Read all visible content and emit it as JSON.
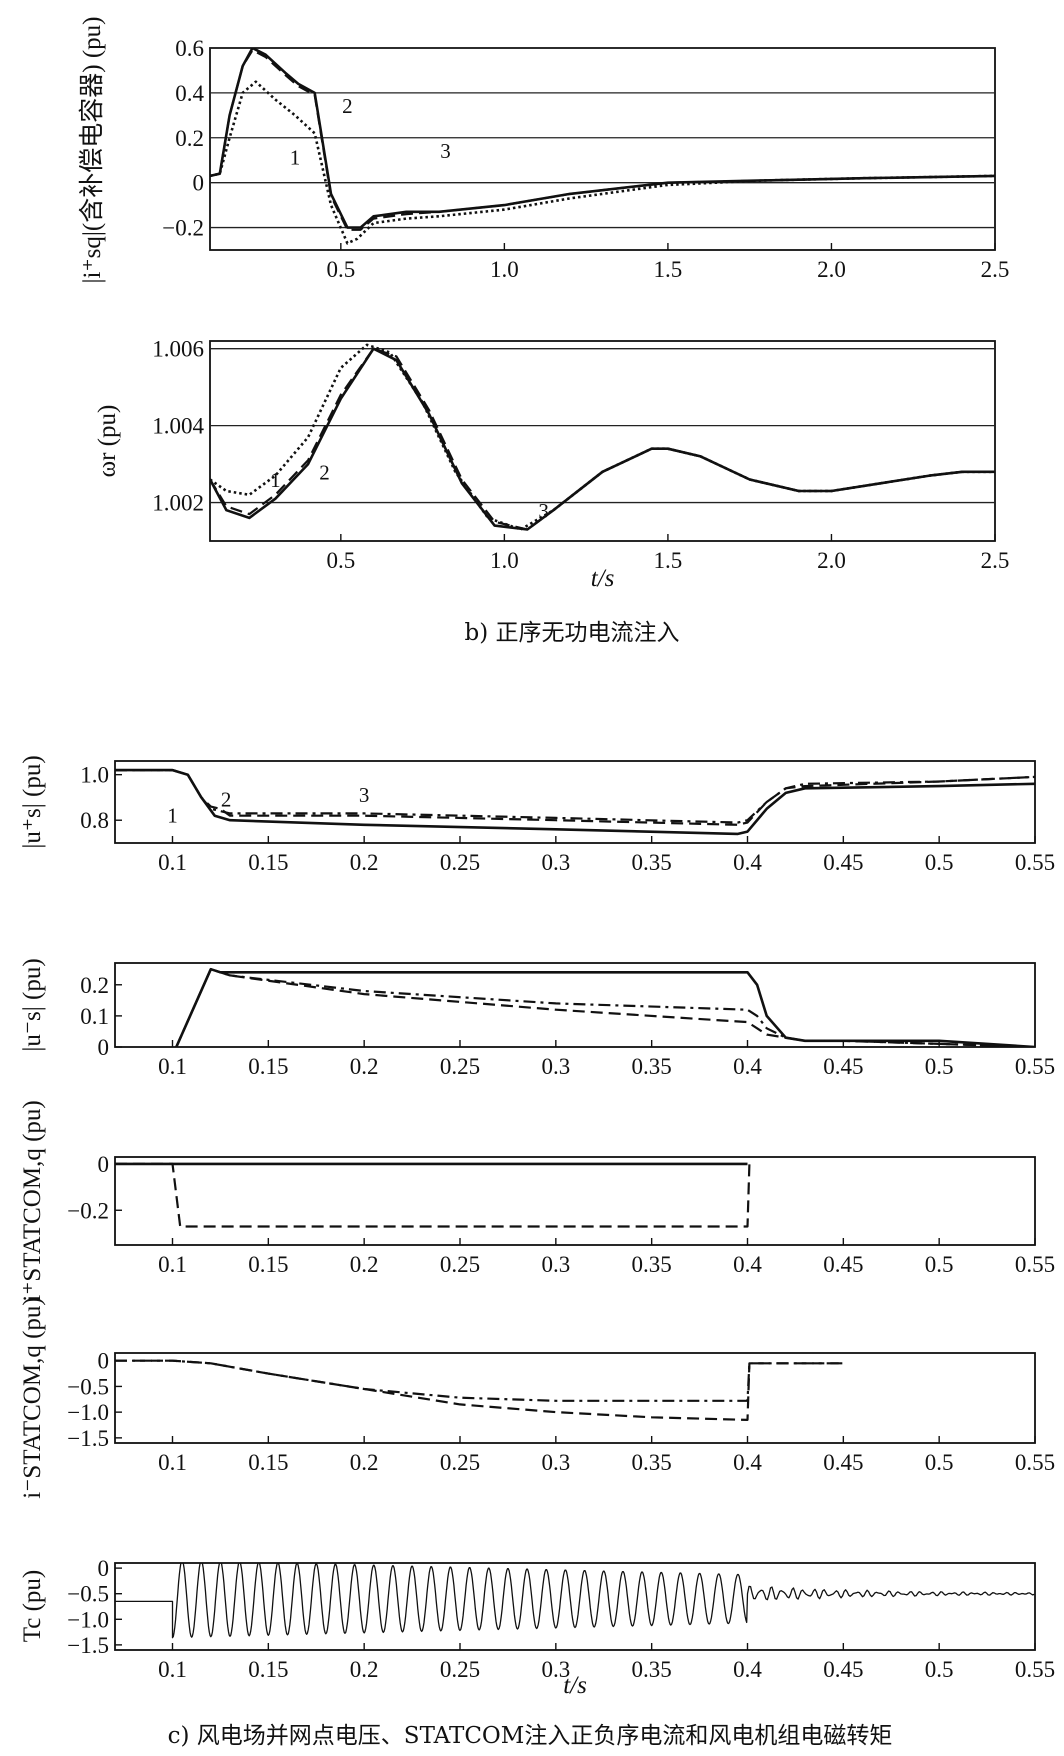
{
  "captions": {
    "b": "b) 正序无功电流注入",
    "c": "c) 风电场并网点电压、STATCOM注入正负序电流和风电机组电磁转矩"
  },
  "chart_data": [
    {
      "type": "line",
      "ylabel": "|i⁺sq|(含补偿电容器) (pu)",
      "xlim": [
        0.1,
        2.5
      ],
      "ylim": [
        -0.3,
        0.6
      ],
      "xticks": [
        0.5,
        1.0,
        1.5,
        2.0,
        2.5
      ],
      "xtick_labels": [
        "0.5",
        "1.0",
        "1.5",
        "2.0",
        "2.5"
      ],
      "yticks": [
        -0.2,
        0,
        0.2,
        0.4,
        0.6
      ],
      "ytick_labels": [
        "−0.2",
        "0",
        "0.2",
        "0.4",
        "0.6"
      ],
      "grid": "horizontal",
      "annotations": [
        {
          "text": "1",
          "x": 0.36,
          "y": 0.08
        },
        {
          "text": "2",
          "x": 0.52,
          "y": 0.31
        },
        {
          "text": "3",
          "x": 0.82,
          "y": 0.11
        }
      ],
      "series": [
        {
          "name": "1",
          "style": "dotted",
          "x": [
            0.1,
            0.13,
            0.16,
            0.2,
            0.24,
            0.3,
            0.36,
            0.42,
            0.47,
            0.52,
            0.55,
            0.6,
            0.7,
            0.8,
            1.0,
            1.2,
            1.5,
            1.8,
            2.1,
            2.5
          ],
          "y": [
            0.03,
            0.04,
            0.2,
            0.4,
            0.45,
            0.37,
            0.3,
            0.22,
            -0.1,
            -0.27,
            -0.25,
            -0.18,
            -0.16,
            -0.15,
            -0.12,
            -0.07,
            -0.01,
            0.01,
            0.02,
            0.03
          ]
        },
        {
          "name": "2",
          "style": "solid",
          "x": [
            0.1,
            0.13,
            0.16,
            0.2,
            0.23,
            0.27,
            0.33,
            0.37,
            0.42,
            0.47,
            0.52,
            0.56,
            0.6,
            0.7,
            0.8,
            1.0,
            1.2,
            1.5,
            1.8,
            2.1,
            2.5
          ],
          "y": [
            0.03,
            0.04,
            0.3,
            0.52,
            0.6,
            0.57,
            0.49,
            0.44,
            0.4,
            -0.05,
            -0.2,
            -0.2,
            -0.15,
            -0.13,
            -0.13,
            -0.1,
            -0.05,
            0.0,
            0.01,
            0.02,
            0.03
          ]
        },
        {
          "name": "3",
          "style": "dashed",
          "x": [
            0.1,
            0.13,
            0.16,
            0.2,
            0.23,
            0.27,
            0.33,
            0.37,
            0.42,
            0.47,
            0.52,
            0.56,
            0.6,
            0.7,
            0.8,
            1.0,
            1.2,
            1.5,
            1.8,
            2.1,
            2.5
          ],
          "y": [
            0.03,
            0.04,
            0.3,
            0.52,
            0.59,
            0.56,
            0.48,
            0.43,
            0.39,
            -0.06,
            -0.21,
            -0.21,
            -0.16,
            -0.14,
            -0.13,
            -0.1,
            -0.05,
            0.0,
            0.01,
            0.02,
            0.03
          ]
        }
      ]
    },
    {
      "type": "line",
      "ylabel": "ωr (pu)",
      "xlabel": "t/s",
      "xlim": [
        0.1,
        2.5
      ],
      "ylim": [
        1.001,
        1.0062
      ],
      "xticks": [
        0.5,
        1.0,
        1.5,
        2.0,
        2.5
      ],
      "xtick_labels": [
        "0.5",
        "1.0",
        "1.5",
        "2.0",
        "2.5"
      ],
      "yticks": [
        1.002,
        1.004,
        1.006
      ],
      "ytick_labels": [
        "1.002",
        "1.004",
        "1.006"
      ],
      "grid": "horizontal",
      "annotations": [
        {
          "text": "1",
          "x": 0.3,
          "y": 1.0024
        },
        {
          "text": "2",
          "x": 0.45,
          "y": 1.0026
        },
        {
          "text": "3",
          "x": 1.12,
          "y": 1.0016
        }
      ],
      "series": [
        {
          "name": "1",
          "style": "dotted",
          "x": [
            0.1,
            0.15,
            0.22,
            0.3,
            0.4,
            0.5,
            0.58,
            0.65,
            0.75,
            0.85,
            0.95,
            1.05,
            1.15,
            1.3,
            1.45,
            1.5,
            1.6,
            1.75,
            1.9,
            2.0,
            2.15,
            2.3,
            2.4,
            2.5
          ],
          "y": [
            1.0026,
            1.0023,
            1.0022,
            1.0027,
            1.0037,
            1.0055,
            1.0061,
            1.0059,
            1.0046,
            1.0028,
            1.0016,
            1.0013,
            1.0018,
            1.0028,
            1.0034,
            1.0034,
            1.0032,
            1.0026,
            1.0023,
            1.0023,
            1.0025,
            1.0027,
            1.0028,
            1.0028
          ]
        },
        {
          "name": "2",
          "style": "dashed",
          "x": [
            0.1,
            0.15,
            0.22,
            0.3,
            0.4,
            0.5,
            0.6,
            0.67,
            0.77,
            0.87,
            0.97,
            1.07,
            1.15,
            1.3,
            1.45,
            1.5,
            1.6,
            1.75,
            1.9,
            2.0,
            2.15,
            2.3,
            2.4,
            2.5
          ],
          "y": [
            1.0026,
            1.0019,
            1.0017,
            1.0022,
            1.0031,
            1.0048,
            1.006,
            1.0058,
            1.0044,
            1.0026,
            1.0015,
            1.0013,
            1.0018,
            1.0028,
            1.0034,
            1.0034,
            1.0032,
            1.0026,
            1.0023,
            1.0023,
            1.0025,
            1.0027,
            1.0028,
            1.0028
          ]
        },
        {
          "name": "3",
          "style": "solid",
          "x": [
            0.1,
            0.15,
            0.22,
            0.3,
            0.4,
            0.5,
            0.6,
            0.67,
            0.77,
            0.87,
            0.97,
            1.07,
            1.15,
            1.3,
            1.45,
            1.5,
            1.6,
            1.75,
            1.9,
            2.0,
            2.15,
            2.3,
            2.4,
            2.5
          ],
          "y": [
            1.0026,
            1.0018,
            1.0016,
            1.0021,
            1.003,
            1.0047,
            1.006,
            1.0057,
            1.0043,
            1.0025,
            1.0014,
            1.0013,
            1.0018,
            1.0028,
            1.0034,
            1.0034,
            1.0032,
            1.0026,
            1.0023,
            1.0023,
            1.0025,
            1.0027,
            1.0028,
            1.0028
          ]
        }
      ]
    },
    {
      "type": "line",
      "ylabel": "|u⁺s| (pu)",
      "xlim": [
        0.07,
        0.55
      ],
      "ylim": [
        0.7,
        1.06
      ],
      "xticks": [
        0.1,
        0.15,
        0.2,
        0.25,
        0.3,
        0.35,
        0.4,
        0.45,
        0.5,
        0.55
      ],
      "xtick_labels": [
        "0.1",
        "0.15",
        "0.2",
        "0.25",
        "0.3",
        "0.35",
        "0.4",
        "0.45",
        "0.5",
        "0.55"
      ],
      "yticks": [
        0.8,
        1.0
      ],
      "ytick_labels": [
        "0.8",
        "1.0"
      ],
      "grid": "none",
      "annotations": [
        {
          "text": "1",
          "x": 0.1,
          "y": 0.79
        },
        {
          "text": "2",
          "x": 0.128,
          "y": 0.86
        },
        {
          "text": "3",
          "x": 0.2,
          "y": 0.88
        }
      ],
      "series": [
        {
          "name": "1",
          "style": "solid",
          "x": [
            0.07,
            0.1,
            0.108,
            0.115,
            0.122,
            0.13,
            0.2,
            0.3,
            0.395,
            0.4,
            0.41,
            0.42,
            0.43,
            0.5,
            0.55
          ],
          "y": [
            1.02,
            1.02,
            1.0,
            0.9,
            0.82,
            0.8,
            0.78,
            0.76,
            0.74,
            0.75,
            0.85,
            0.92,
            0.94,
            0.95,
            0.96
          ]
        },
        {
          "name": "2",
          "style": "dashed",
          "x": [
            0.07,
            0.1,
            0.108,
            0.115,
            0.12,
            0.125,
            0.13,
            0.2,
            0.3,
            0.395,
            0.4,
            0.41,
            0.42,
            0.43,
            0.5,
            0.55
          ],
          "y": [
            1.02,
            1.02,
            1.0,
            0.9,
            0.86,
            0.85,
            0.82,
            0.82,
            0.8,
            0.78,
            0.79,
            0.88,
            0.94,
            0.95,
            0.97,
            0.99
          ]
        },
        {
          "name": "3",
          "style": "dashdot",
          "x": [
            0.07,
            0.1,
            0.108,
            0.115,
            0.12,
            0.13,
            0.2,
            0.3,
            0.395,
            0.4,
            0.41,
            0.42,
            0.43,
            0.5,
            0.55
          ],
          "y": [
            1.02,
            1.02,
            1.0,
            0.9,
            0.85,
            0.83,
            0.83,
            0.81,
            0.79,
            0.8,
            0.88,
            0.94,
            0.96,
            0.97,
            0.99
          ]
        }
      ]
    },
    {
      "type": "line",
      "ylabel": "|u⁻s| (pu)",
      "xlim": [
        0.07,
        0.55
      ],
      "ylim": [
        0,
        0.27
      ],
      "xticks": [
        0.1,
        0.15,
        0.2,
        0.25,
        0.3,
        0.35,
        0.4,
        0.45,
        0.5,
        0.55
      ],
      "xtick_labels": [
        "0.1",
        "0.15",
        "0.2",
        "0.25",
        "0.3",
        "0.35",
        "0.4",
        "0.45",
        "0.5",
        "0.55"
      ],
      "yticks": [
        0,
        0.1,
        0.2
      ],
      "ytick_labels": [
        "0",
        "0.1",
        "0.2"
      ],
      "grid": "none",
      "series": [
        {
          "name": "1",
          "style": "solid",
          "x": [
            0.102,
            0.12,
            0.125,
            0.2,
            0.3,
            0.4,
            0.405,
            0.41,
            0.42,
            0.43,
            0.45,
            0.5,
            0.55
          ],
          "y": [
            0,
            0.25,
            0.24,
            0.24,
            0.24,
            0.24,
            0.2,
            0.1,
            0.03,
            0.02,
            0.02,
            0.02,
            0.0
          ]
        },
        {
          "name": "2",
          "style": "dashed",
          "x": [
            0.102,
            0.12,
            0.13,
            0.2,
            0.3,
            0.4,
            0.405,
            0.41,
            0.42,
            0.43,
            0.45,
            0.5,
            0.55
          ],
          "y": [
            0,
            0.25,
            0.23,
            0.17,
            0.12,
            0.08,
            0.06,
            0.04,
            0.03,
            0.02,
            0.02,
            0.01,
            0.0
          ]
        },
        {
          "name": "3",
          "style": "dashdot",
          "x": [
            0.102,
            0.12,
            0.13,
            0.2,
            0.3,
            0.4,
            0.405,
            0.41,
            0.42,
            0.43,
            0.45,
            0.5,
            0.55
          ],
          "y": [
            0,
            0.25,
            0.23,
            0.18,
            0.14,
            0.12,
            0.1,
            0.06,
            0.03,
            0.02,
            0.02,
            0.01,
            0.0
          ]
        }
      ]
    },
    {
      "type": "line",
      "ylabel": "i⁺STATCOM,q (pu)",
      "xlim": [
        0.07,
        0.55
      ],
      "ylim": [
        -0.35,
        0.03
      ],
      "xticks": [
        0.1,
        0.15,
        0.2,
        0.25,
        0.3,
        0.35,
        0.4,
        0.45,
        0.5,
        0.55
      ],
      "xtick_labels": [
        "0.1",
        "0.15",
        "0.2",
        "0.25",
        "0.3",
        "0.35",
        "0.4",
        "0.45",
        "0.5",
        "0.55"
      ],
      "yticks": [
        -0.2,
        0
      ],
      "ytick_labels": [
        "−0.2",
        "0"
      ],
      "grid": "none",
      "series": [
        {
          "name": "solid",
          "style": "solid",
          "x": [
            0.07,
            0.4
          ],
          "y": [
            0,
            0
          ]
        },
        {
          "name": "dashed",
          "style": "dashed",
          "x": [
            0.07,
            0.1,
            0.104,
            0.4,
            0.401
          ],
          "y": [
            0,
            0,
            -0.27,
            -0.27,
            0
          ]
        }
      ]
    },
    {
      "type": "line",
      "ylabel": "i⁻STATCOM,q (pu)",
      "xlim": [
        0.07,
        0.55
      ],
      "ylim": [
        -1.6,
        0.15
      ],
      "xticks": [
        0.1,
        0.15,
        0.2,
        0.25,
        0.3,
        0.35,
        0.4,
        0.45,
        0.5,
        0.55
      ],
      "xtick_labels": [
        "0.1",
        "0.15",
        "0.2",
        "0.25",
        "0.3",
        "0.35",
        "0.4",
        "0.45",
        "0.5",
        "0.55"
      ],
      "yticks": [
        -1.5,
        -1.0,
        -0.5,
        0
      ],
      "ytick_labels": [
        "−1.5",
        "−1.0",
        "−0.5",
        "0"
      ],
      "grid": "none",
      "series": [
        {
          "name": "dashed",
          "style": "dashed",
          "x": [
            0.07,
            0.1,
            0.12,
            0.15,
            0.2,
            0.25,
            0.3,
            0.35,
            0.4,
            0.401,
            0.45
          ],
          "y": [
            0,
            0,
            -0.05,
            -0.25,
            -0.55,
            -0.85,
            -1.0,
            -1.1,
            -1.15,
            -0.05,
            -0.05
          ]
        },
        {
          "name": "dashdot",
          "style": "dashdot",
          "x": [
            0.07,
            0.1,
            0.12,
            0.15,
            0.2,
            0.25,
            0.3,
            0.35,
            0.4,
            0.401,
            0.45
          ],
          "y": [
            0,
            0,
            -0.05,
            -0.25,
            -0.55,
            -0.72,
            -0.78,
            -0.78,
            -0.78,
            -0.05,
            -0.05
          ]
        }
      ]
    },
    {
      "type": "line",
      "ylabel": "Tc (pu)",
      "xlabel": "t/s",
      "xlim": [
        0.07,
        0.55
      ],
      "ylim": [
        -1.6,
        0.1
      ],
      "xticks": [
        0.1,
        0.15,
        0.2,
        0.25,
        0.3,
        0.35,
        0.4,
        0.45,
        0.5,
        0.55
      ],
      "xtick_labels": [
        "0.1",
        "0.15",
        "0.2",
        "0.25",
        "0.3",
        "0.35",
        "0.4",
        "0.45",
        "0.5",
        "0.55"
      ],
      "yticks": [
        -1.5,
        -1.0,
        -0.5,
        0
      ],
      "ytick_labels": [
        "−1.5",
        "−1.0",
        "−0.5",
        "0"
      ],
      "grid": "none",
      "series": [
        {
          "name": "oscillation",
          "style": "solid",
          "pre_fault": -0.65,
          "fault_start": 0.1,
          "fault_end": 0.4,
          "frequency_hz": 100,
          "amplitude_start": 0.8,
          "amplitude_end": 0.5,
          "mean": -0.6,
          "post_fault": -0.5
        }
      ]
    }
  ]
}
